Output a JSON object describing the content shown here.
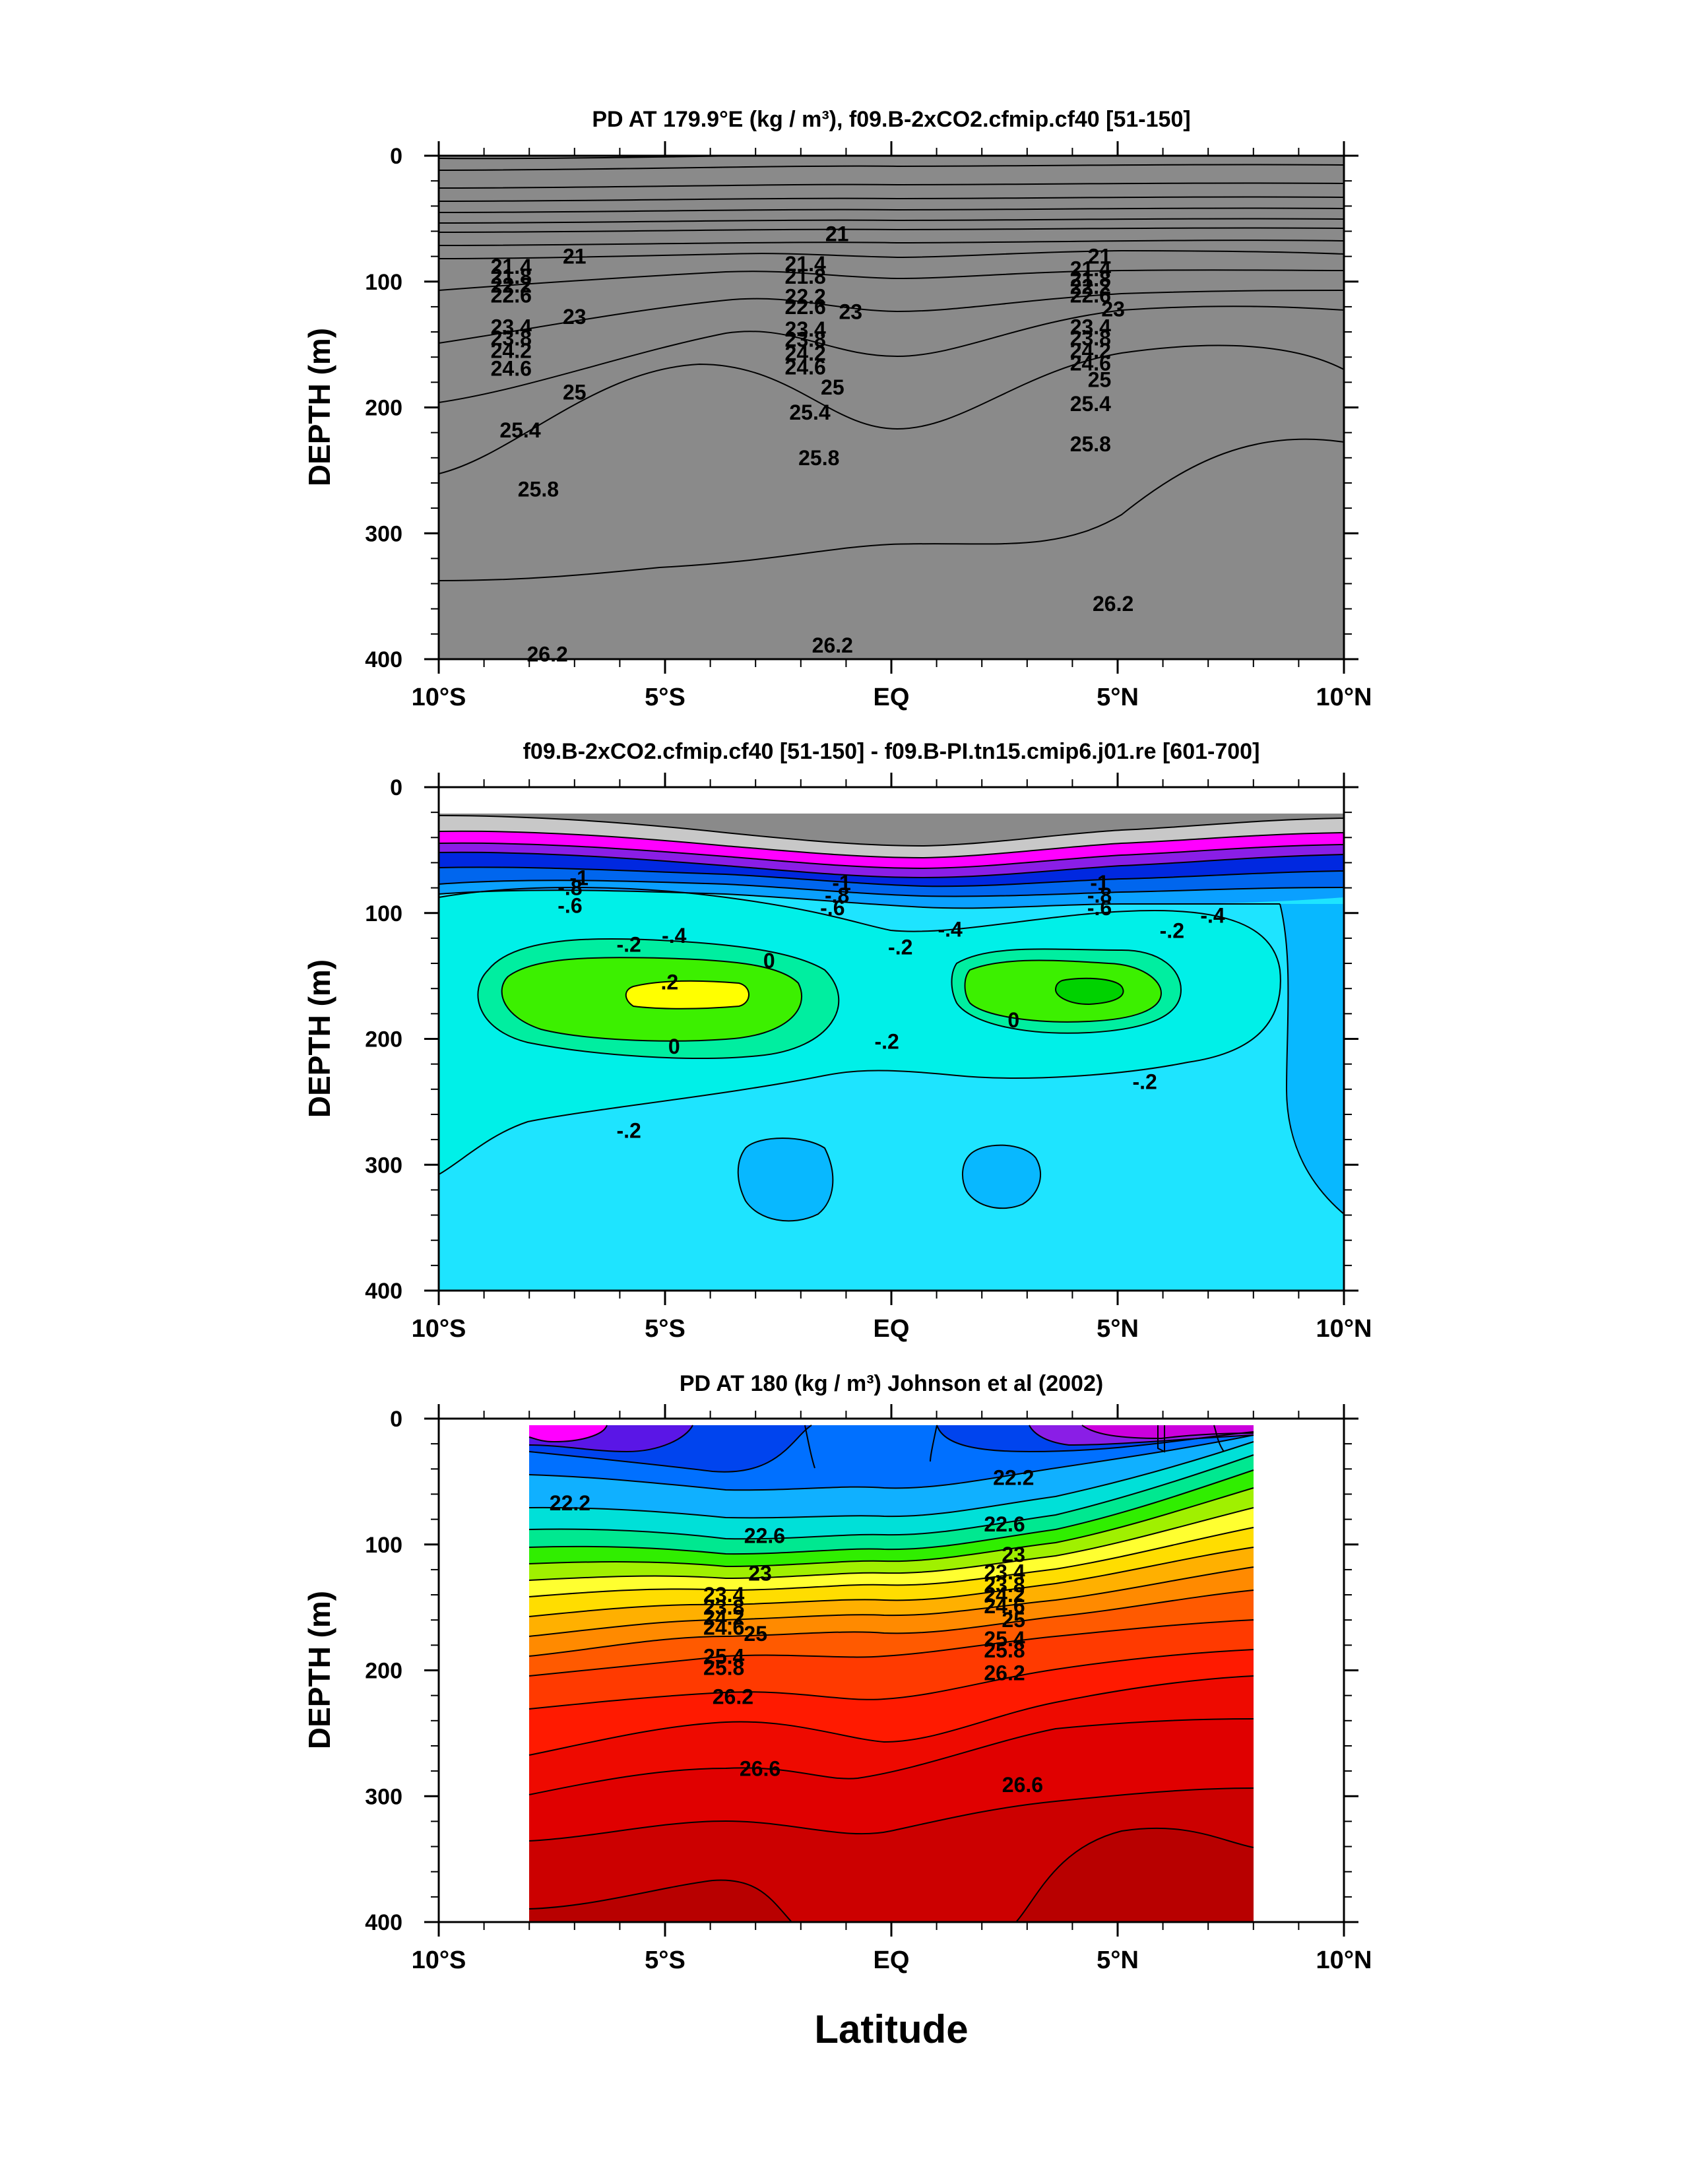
{
  "figure": {
    "xlabel": "Latitude"
  },
  "chart_data": [
    {
      "type": "contour",
      "title": "PD AT 179.9°E (kg / m³), f09.B-2xCO2.cfmip.cf40 [51-150]",
      "ylabel": "DEPTH (m)",
      "xlim": [
        -10,
        10
      ],
      "ylim": [
        400,
        0
      ],
      "x_ticks": [
        "10°S",
        "5°S",
        "EQ",
        "5°N",
        "10°N"
      ],
      "y_ticks": [
        "0",
        "100",
        "200",
        "300",
        "400"
      ],
      "contour_labels": [
        {
          "text": "21",
          "x": -7.0,
          "y": 80
        },
        {
          "text": "21",
          "x": -1.2,
          "y": 62
        },
        {
          "text": "21",
          "x": 4.6,
          "y": 80
        },
        {
          "text": "21.4",
          "x": -8.4,
          "y": 88
        },
        {
          "text": "21.8",
          "x": -8.4,
          "y": 96
        },
        {
          "text": "22.2",
          "x": -8.4,
          "y": 103
        },
        {
          "text": "22.6",
          "x": -8.4,
          "y": 111
        },
        {
          "text": "23",
          "x": -7.0,
          "y": 128
        },
        {
          "text": "23.4",
          "x": -8.4,
          "y": 136
        },
        {
          "text": "23.8",
          "x": -8.4,
          "y": 145
        },
        {
          "text": "24.2",
          "x": -8.4,
          "y": 155
        },
        {
          "text": "24.6",
          "x": -8.4,
          "y": 169
        },
        {
          "text": "25",
          "x": -7.0,
          "y": 188
        },
        {
          "text": "25.4",
          "x": -8.2,
          "y": 218
        },
        {
          "text": "25.8",
          "x": -7.8,
          "y": 265
        },
        {
          "text": "26.2",
          "x": -7.6,
          "y": 396
        },
        {
          "text": "21.4",
          "x": -1.9,
          "y": 86
        },
        {
          "text": "21.8",
          "x": -1.9,
          "y": 96
        },
        {
          "text": "22.2",
          "x": -1.9,
          "y": 112
        },
        {
          "text": "22.6",
          "x": -1.9,
          "y": 120
        },
        {
          "text": "23",
          "x": -0.9,
          "y": 124
        },
        {
          "text": "23.4",
          "x": -1.9,
          "y": 138
        },
        {
          "text": "23.8",
          "x": -1.9,
          "y": 146
        },
        {
          "text": "24.2",
          "x": -1.9,
          "y": 157
        },
        {
          "text": "24.6",
          "x": -1.9,
          "y": 168
        },
        {
          "text": "25",
          "x": -1.3,
          "y": 184
        },
        {
          "text": "25.4",
          "x": -1.8,
          "y": 204
        },
        {
          "text": "25.8",
          "x": -1.6,
          "y": 240
        },
        {
          "text": "26.2",
          "x": -1.3,
          "y": 389
        },
        {
          "text": "21.4",
          "x": 4.4,
          "y": 90
        },
        {
          "text": "21.8",
          "x": 4.4,
          "y": 98
        },
        {
          "text": "22.2",
          "x": 4.4,
          "y": 104
        },
        {
          "text": "22.6",
          "x": 4.4,
          "y": 111
        },
        {
          "text": "23",
          "x": 4.9,
          "y": 122
        },
        {
          "text": "23.4",
          "x": 4.4,
          "y": 136
        },
        {
          "text": "23.8",
          "x": 4.4,
          "y": 145
        },
        {
          "text": "24.2",
          "x": 4.4,
          "y": 155
        },
        {
          "text": "24.6",
          "x": 4.4,
          "y": 165
        },
        {
          "text": "25",
          "x": 4.6,
          "y": 178
        },
        {
          "text": "25.4",
          "x": 4.4,
          "y": 197
        },
        {
          "text": "25.8",
          "x": 4.4,
          "y": 229
        },
        {
          "text": "26.2",
          "x": 4.9,
          "y": 356
        }
      ]
    },
    {
      "type": "contour",
      "title": "f09.B-2xCO2.cfmip.cf40 [51-150] - f09.B-PI.tn15.cmip6.j01.re [601-700]",
      "ylabel": "DEPTH (m)",
      "xlim": [
        -10,
        10
      ],
      "ylim": [
        400,
        0
      ],
      "x_ticks": [
        "10°S",
        "5°S",
        "EQ",
        "5°N",
        "10°N"
      ],
      "y_ticks": [
        "0",
        "100",
        "200",
        "300",
        "400"
      ],
      "contour_labels": [
        {
          "text": "-1",
          "x": -6.9,
          "y": 72
        },
        {
          "text": "-.8",
          "x": -7.1,
          "y": 80
        },
        {
          "text": "-.6",
          "x": -7.1,
          "y": 94
        },
        {
          "text": "-.4",
          "x": -4.8,
          "y": 118
        },
        {
          "text": "-.2",
          "x": -5.8,
          "y": 125
        },
        {
          "text": "0",
          "x": -2.7,
          "y": 138
        },
        {
          "text": ".2",
          "x": -4.9,
          "y": 155
        },
        {
          "text": "0",
          "x": -4.8,
          "y": 206
        },
        {
          "text": "-.2",
          "x": -5.8,
          "y": 273
        },
        {
          "text": "-1",
          "x": -1.1,
          "y": 76
        },
        {
          "text": "-.8",
          "x": -1.2,
          "y": 86
        },
        {
          "text": "-.6",
          "x": -1.3,
          "y": 96
        },
        {
          "text": "-.2",
          "x": 0.2,
          "y": 127
        },
        {
          "text": "-.4",
          "x": 1.3,
          "y": 113
        },
        {
          "text": "-.2",
          "x": -0.1,
          "y": 202
        },
        {
          "text": "0",
          "x": 2.7,
          "y": 185
        },
        {
          "text": "-1",
          "x": 4.6,
          "y": 76
        },
        {
          "text": "-.8",
          "x": 4.6,
          "y": 86
        },
        {
          "text": "-.6",
          "x": 4.6,
          "y": 96
        },
        {
          "text": "-.2",
          "x": 6.2,
          "y": 114
        },
        {
          "text": "-.4",
          "x": 7.1,
          "y": 102
        },
        {
          "text": "-.2",
          "x": 5.6,
          "y": 234
        }
      ]
    },
    {
      "type": "contour",
      "title": "PD AT 180 (kg / m³) Johnson et al (2002)",
      "ylabel": "DEPTH (m)",
      "xlim": [
        -10,
        10
      ],
      "ylim": [
        400,
        0
      ],
      "x_ticks": [
        "10°S",
        "5°S",
        "EQ",
        "5°N",
        "10°N"
      ],
      "y_ticks": [
        "0",
        "100",
        "200",
        "300",
        "400"
      ],
      "contour_labels": [
        {
          "text": "22.2",
          "x": -7.1,
          "y": 67
        },
        {
          "text": "22.6",
          "x": -2.8,
          "y": 93
        },
        {
          "text": "23",
          "x": -2.9,
          "y": 123
        },
        {
          "text": "23.4",
          "x": -3.7,
          "y": 140
        },
        {
          "text": "23.8",
          "x": -3.7,
          "y": 150
        },
        {
          "text": "24.2",
          "x": -3.7,
          "y": 158
        },
        {
          "text": "24.6",
          "x": -3.7,
          "y": 166
        },
        {
          "text": "25",
          "x": -3.0,
          "y": 171
        },
        {
          "text": "25.4",
          "x": -3.7,
          "y": 189
        },
        {
          "text": "25.8",
          "x": -3.7,
          "y": 198
        },
        {
          "text": "26.2",
          "x": -3.5,
          "y": 221
        },
        {
          "text": "26.6",
          "x": -2.9,
          "y": 278
        },
        {
          "text": "22.2",
          "x": 2.7,
          "y": 47
        },
        {
          "text": "22.6",
          "x": 2.5,
          "y": 84
        },
        {
          "text": "23",
          "x": 2.7,
          "y": 108
        },
        {
          "text": "23.4",
          "x": 2.5,
          "y": 122
        },
        {
          "text": "23.8",
          "x": 2.5,
          "y": 132
        },
        {
          "text": "24.2",
          "x": 2.5,
          "y": 140
        },
        {
          "text": "24.6",
          "x": 2.5,
          "y": 149
        },
        {
          "text": "25",
          "x": 2.7,
          "y": 160
        },
        {
          "text": "25.4",
          "x": 2.5,
          "y": 175
        },
        {
          "text": "25.8",
          "x": 2.5,
          "y": 184
        },
        {
          "text": "26.2",
          "x": 2.5,
          "y": 202
        },
        {
          "text": "26.6",
          "x": 2.9,
          "y": 291
        }
      ]
    }
  ]
}
